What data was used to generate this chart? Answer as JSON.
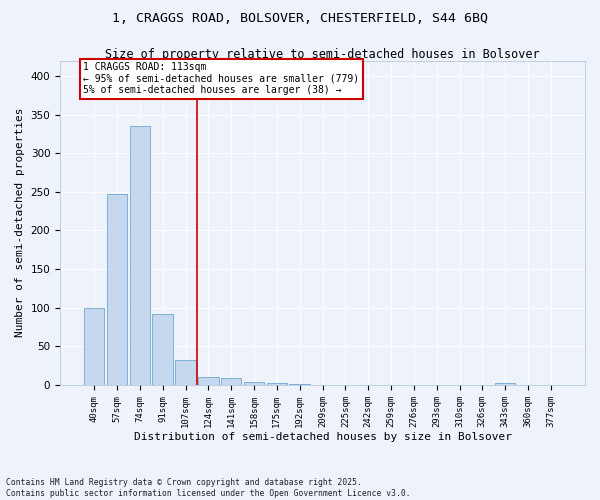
{
  "title_line1": "1, CRAGGS ROAD, BOLSOVER, CHESTERFIELD, S44 6BQ",
  "title_line2": "Size of property relative to semi-detached houses in Bolsover",
  "xlabel": "Distribution of semi-detached houses by size in Bolsover",
  "ylabel": "Number of semi-detached properties",
  "categories": [
    "40sqm",
    "57sqm",
    "74sqm",
    "91sqm",
    "107sqm",
    "124sqm",
    "141sqm",
    "158sqm",
    "175sqm",
    "192sqm",
    "209sqm",
    "225sqm",
    "242sqm",
    "259sqm",
    "276sqm",
    "293sqm",
    "310sqm",
    "326sqm",
    "343sqm",
    "360sqm",
    "377sqm"
  ],
  "values": [
    100,
    247,
    335,
    92,
    32,
    10,
    9,
    4,
    2,
    1,
    0,
    0,
    0,
    0,
    0,
    0,
    0,
    0,
    2,
    0,
    0
  ],
  "bar_color": "#c5d8ee",
  "bar_edge_color": "#6ea6d0",
  "vline_x_index": 4.5,
  "vline_color": "#cc0000",
  "annotation_line1": "1 CRAGGS ROAD: 113sqm",
  "annotation_line2": "← 95% of semi-detached houses are smaller (779)",
  "annotation_line3": "5% of semi-detached houses are larger (38) →",
  "annotation_box_color": "#ffffff",
  "annotation_box_edge_color": "#cc0000",
  "ylim": [
    0,
    420
  ],
  "yticks": [
    0,
    50,
    100,
    150,
    200,
    250,
    300,
    350,
    400
  ],
  "footnote": "Contains HM Land Registry data © Crown copyright and database right 2025.\nContains public sector information licensed under the Open Government Licence v3.0.",
  "bg_color": "#eef2fa",
  "grid_color": "#ffffff",
  "title_fontsize": 9.5,
  "subtitle_fontsize": 8.5,
  "tick_fontsize": 6.5,
  "ylabel_fontsize": 8,
  "xlabel_fontsize": 8,
  "footnote_fontsize": 5.8
}
